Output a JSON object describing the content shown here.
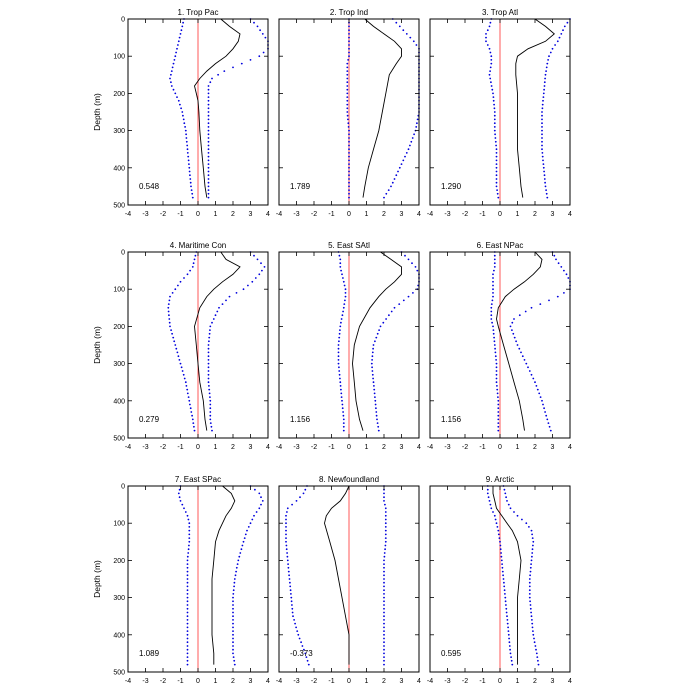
{
  "chart_data": {
    "type": "line",
    "shared_axes": {
      "xlim": [
        -4,
        4
      ],
      "ylim": [
        0,
        500
      ],
      "y_inverted": true,
      "x_ticks": [
        -4,
        -3,
        -2,
        -1,
        0,
        1,
        2,
        3,
        4
      ],
      "y_ticks": [
        0,
        100,
        200,
        300,
        400,
        500
      ],
      "ylabel": "Depth (m)",
      "grid": false,
      "colors": {
        "mean": "#000000",
        "bounds": "#0000dd",
        "zero": "#ff5a5a"
      }
    },
    "panels": [
      {
        "title": "1. Trop Pac",
        "stat": "0.548",
        "depth": [
          0,
          20,
          40,
          60,
          80,
          100,
          120,
          140,
          160,
          180,
          200,
          220,
          250,
          300,
          350,
          400,
          450,
          480
        ],
        "mean": [
          1.3,
          1.8,
          2.4,
          2.3,
          2.0,
          1.6,
          1.0,
          0.5,
          0.1,
          -0.2,
          -0.1,
          0.0,
          0.05,
          0.1,
          0.2,
          0.3,
          0.4,
          0.5
        ],
        "lower": [
          -0.8,
          -0.9,
          -1.0,
          -1.1,
          -1.2,
          -1.3,
          -1.4,
          -1.5,
          -1.6,
          -1.5,
          -1.3,
          -1.1,
          -0.9,
          -0.7,
          -0.6,
          -0.5,
          -0.4,
          -0.3
        ],
        "upper": [
          3.0,
          3.4,
          3.7,
          4.0,
          4.0,
          3.5,
          2.5,
          1.5,
          0.8,
          0.6,
          0.6,
          0.6,
          0.6,
          0.6,
          0.6,
          0.6,
          0.6,
          0.6
        ]
      },
      {
        "title": "2. Trop Ind",
        "stat": "1.789",
        "depth": [
          0,
          20,
          40,
          60,
          80,
          100,
          120,
          150,
          200,
          250,
          300,
          350,
          400,
          450,
          480
        ],
        "mean": [
          0.9,
          1.4,
          2.0,
          2.6,
          3.0,
          3.0,
          2.7,
          2.3,
          2.1,
          1.9,
          1.7,
          1.4,
          1.1,
          0.9,
          0.8
        ],
        "lower": [
          0.0,
          0.0,
          0.0,
          0.0,
          0.0,
          0.0,
          -0.1,
          -0.1,
          -0.1,
          -0.1,
          0.0,
          0.0,
          0.0,
          0.0,
          0.0
        ],
        "upper": [
          2.5,
          2.9,
          3.3,
          3.7,
          4.0,
          4.0,
          4.0,
          4.0,
          4.0,
          4.0,
          3.8,
          3.4,
          2.9,
          2.4,
          2.0
        ]
      },
      {
        "title": "3. Trop Atl",
        "stat": "1.290",
        "depth": [
          0,
          20,
          40,
          60,
          80,
          100,
          120,
          150,
          200,
          250,
          300,
          350,
          400,
          450,
          480
        ],
        "mean": [
          2.0,
          2.6,
          3.1,
          2.6,
          1.6,
          1.0,
          0.9,
          0.9,
          1.0,
          1.0,
          1.0,
          1.0,
          1.1,
          1.2,
          1.3
        ],
        "lower": [
          -0.5,
          -0.6,
          -0.8,
          -0.8,
          -0.6,
          -0.5,
          -0.5,
          -0.6,
          -0.4,
          -0.3,
          -0.3,
          -0.2,
          -0.2,
          -0.2,
          -0.1
        ],
        "upper": [
          4.0,
          3.7,
          3.5,
          3.3,
          3.0,
          2.8,
          2.7,
          2.6,
          2.5,
          2.4,
          2.4,
          2.4,
          2.5,
          2.6,
          2.7
        ]
      },
      {
        "title": "4. Maritime Con",
        "stat": "0.279",
        "depth": [
          0,
          20,
          40,
          60,
          80,
          100,
          120,
          150,
          200,
          250,
          300,
          350,
          400,
          450,
          480
        ],
        "mean": [
          1.3,
          1.6,
          2.4,
          2.0,
          1.4,
          0.9,
          0.5,
          0.1,
          -0.2,
          -0.1,
          0.0,
          0.1,
          0.3,
          0.4,
          0.5
        ],
        "lower": [
          -0.1,
          -0.2,
          -0.3,
          -0.6,
          -1.0,
          -1.3,
          -1.6,
          -1.7,
          -1.6,
          -1.3,
          -1.0,
          -0.7,
          -0.5,
          -0.3,
          -0.2
        ],
        "upper": [
          3.0,
          3.4,
          3.8,
          3.5,
          3.1,
          2.6,
          1.8,
          1.2,
          0.7,
          0.6,
          0.6,
          0.6,
          0.7,
          0.7,
          0.8
        ]
      },
      {
        "title": "5. East SAtl",
        "stat": "1.156",
        "depth": [
          0,
          20,
          40,
          60,
          80,
          100,
          120,
          150,
          200,
          250,
          300,
          350,
          400,
          450,
          480
        ],
        "mean": [
          1.8,
          2.4,
          3.0,
          3.0,
          2.6,
          2.1,
          1.7,
          1.2,
          0.6,
          0.3,
          0.2,
          0.3,
          0.4,
          0.6,
          0.8
        ],
        "lower": [
          -0.6,
          -0.5,
          -0.5,
          -0.4,
          -0.3,
          -0.2,
          -0.2,
          -0.3,
          -0.5,
          -0.6,
          -0.6,
          -0.5,
          -0.4,
          -0.3,
          -0.3
        ],
        "upper": [
          3.0,
          3.4,
          3.8,
          4.0,
          4.0,
          3.9,
          3.4,
          2.6,
          1.8,
          1.4,
          1.3,
          1.4,
          1.5,
          1.6,
          1.7
        ]
      },
      {
        "title": "6. East NPac",
        "stat": "1.156",
        "depth": [
          0,
          20,
          40,
          60,
          80,
          100,
          120,
          150,
          180,
          200,
          250,
          300,
          350,
          400,
          450,
          480
        ],
        "mean": [
          2.0,
          2.4,
          2.3,
          1.9,
          1.4,
          0.8,
          0.3,
          -0.1,
          -0.2,
          -0.1,
          0.2,
          0.5,
          0.8,
          1.1,
          1.3,
          1.4
        ],
        "lower": [
          -0.3,
          -0.3,
          -0.3,
          -0.4,
          -0.4,
          -0.4,
          -0.4,
          -0.5,
          -0.5,
          -0.4,
          -0.3,
          -0.2,
          -0.2,
          -0.1,
          -0.1,
          -0.1
        ],
        "upper": [
          3.0,
          3.2,
          3.5,
          3.8,
          4.0,
          4.0,
          3.3,
          1.8,
          0.8,
          0.6,
          1.0,
          1.5,
          2.0,
          2.4,
          2.7,
          2.9
        ]
      },
      {
        "title": "7. East SPac",
        "stat": "1.089",
        "depth": [
          0,
          20,
          40,
          60,
          80,
          100,
          120,
          150,
          200,
          250,
          300,
          350,
          400,
          450,
          480
        ],
        "mean": [
          1.4,
          1.9,
          2.1,
          1.9,
          1.6,
          1.4,
          1.2,
          1.0,
          0.9,
          0.8,
          0.8,
          0.8,
          0.8,
          0.9,
          0.9
        ],
        "lower": [
          -1.0,
          -1.1,
          -1.0,
          -0.8,
          -0.6,
          -0.5,
          -0.5,
          -0.5,
          -0.6,
          -0.6,
          -0.6,
          -0.6,
          -0.6,
          -0.6,
          -0.6
        ],
        "upper": [
          3.0,
          3.5,
          3.7,
          3.5,
          3.2,
          3.0,
          2.8,
          2.6,
          2.3,
          2.1,
          2.0,
          2.0,
          2.0,
          2.0,
          2.1
        ]
      },
      {
        "title": "8. Newfoundland",
        "stat": "-0.373",
        "depth": [
          0,
          20,
          40,
          60,
          80,
          100,
          150,
          200,
          250,
          300,
          350,
          400,
          450,
          480
        ],
        "mean": [
          0.0,
          -0.2,
          -0.5,
          -1.0,
          -1.3,
          -1.4,
          -1.1,
          -0.8,
          -0.6,
          -0.4,
          -0.2,
          0.0,
          0.0,
          0.0
        ],
        "lower": [
          -2.4,
          -2.6,
          -3.0,
          -3.5,
          -3.6,
          -3.6,
          -3.6,
          -3.5,
          -3.4,
          -3.3,
          -3.2,
          -2.9,
          -2.5,
          -2.3
        ],
        "upper": [
          2.0,
          2.0,
          2.0,
          2.1,
          2.1,
          2.1,
          2.1,
          2.0,
          2.0,
          2.0,
          2.0,
          2.0,
          2.0,
          2.0
        ]
      },
      {
        "title": "9. Arctic",
        "stat": "0.595",
        "depth": [
          0,
          20,
          40,
          60,
          80,
          100,
          120,
          150,
          200,
          250,
          300,
          350,
          400,
          450,
          480
        ],
        "mean": [
          -0.4,
          -0.4,
          -0.3,
          -0.2,
          0.1,
          0.4,
          0.7,
          1.0,
          1.2,
          1.1,
          1.0,
          1.0,
          1.0,
          1.0,
          1.0
        ],
        "lower": [
          -0.7,
          -0.7,
          -0.6,
          -0.5,
          -0.3,
          -0.2,
          -0.1,
          0.0,
          0.1,
          0.2,
          0.3,
          0.4,
          0.5,
          0.6,
          0.7
        ],
        "upper": [
          0.2,
          0.3,
          0.4,
          0.6,
          1.0,
          1.5,
          1.8,
          1.9,
          1.8,
          1.7,
          1.7,
          1.8,
          1.9,
          2.1,
          2.2
        ]
      }
    ]
  }
}
